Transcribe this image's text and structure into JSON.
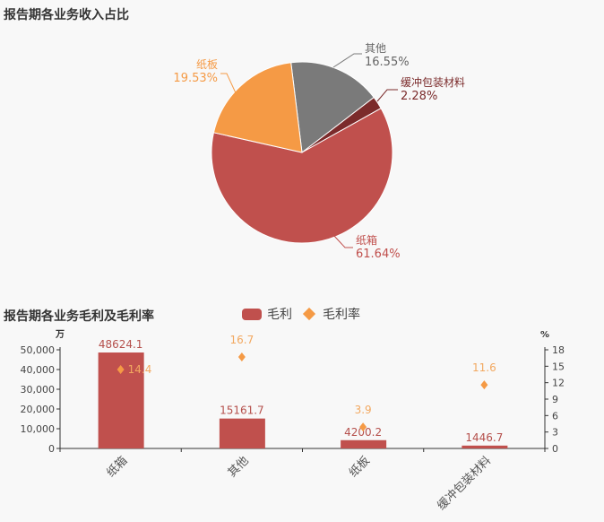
{
  "chart_data": [
    {
      "type": "pie",
      "title": "报告期各业务收入占比",
      "slices": [
        {
          "label": "其他",
          "value": 16.55,
          "display": "16.55%",
          "color": "#7a7a7a",
          "label_color": "#666666"
        },
        {
          "label": "缓冲包装材料",
          "value": 2.28,
          "display": "2.28%",
          "color": "#7b2b2b",
          "label_color": "#7b2b2b"
        },
        {
          "label": "纸箱",
          "value": 61.64,
          "display": "61.64%",
          "color": "#c0504d",
          "label_color": "#c0504d"
        },
        {
          "label": "纸板",
          "value": 19.53,
          "display": "19.53%",
          "color": "#f59a45",
          "label_color": "#f59a45"
        }
      ]
    },
    {
      "type": "bar",
      "title": "报告期各业务毛利及毛利率",
      "categories": [
        "纸箱",
        "其他",
        "纸板",
        "缓冲包装材料"
      ],
      "series": [
        {
          "name": "毛利",
          "type": "bar",
          "axis": "left",
          "values": [
            48624.1,
            15161.7,
            4200.2,
            1446.7
          ],
          "labels": [
            "48624.1",
            "15161.7",
            "4200.2",
            "1446.7"
          ],
          "color": "#c0504d"
        },
        {
          "name": "毛利率",
          "type": "scatter",
          "axis": "right",
          "values": [
            14.4,
            16.7,
            3.9,
            11.6
          ],
          "labels": [
            "14.4",
            "16.7",
            "3.9",
            "11.6"
          ],
          "color": "#f59a45"
        }
      ],
      "left_axis": {
        "unit": "万",
        "ylim": [
          0,
          50000
        ],
        "ticks": [
          "0",
          "10,000",
          "20,000",
          "30,000",
          "40,000",
          "50,000"
        ]
      },
      "right_axis": {
        "unit": "%",
        "ylim": [
          0,
          18
        ],
        "ticks": [
          "0",
          "3",
          "6",
          "9",
          "12",
          "15",
          "18"
        ]
      },
      "legend": "top"
    }
  ]
}
